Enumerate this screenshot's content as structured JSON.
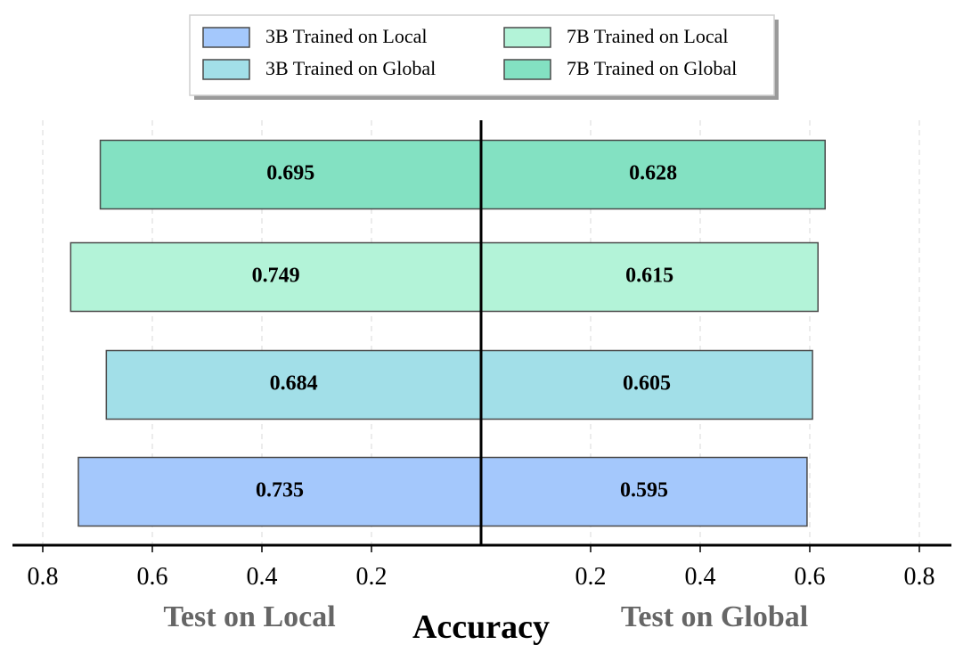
{
  "chart_data": {
    "type": "bar",
    "orientation": "horizontal-butterfly",
    "xlabel": "Accuracy",
    "panels": [
      {
        "name": "Test on Local",
        "side": "left"
      },
      {
        "name": "Test on Global",
        "side": "right"
      }
    ],
    "x_range": [
      0,
      0.8
    ],
    "x_ticks": [
      "0.2",
      "0.4",
      "0.6",
      "0.8"
    ],
    "grid": "vertical dashed",
    "legend_placement": "top-center",
    "series": [
      {
        "name": "3B Trained on Local",
        "color": "#a4c8fc",
        "left_value": 0.735,
        "right_value": 0.595,
        "left_label": "0.735",
        "right_label": "0.595"
      },
      {
        "name": "3B Trained on Global",
        "color": "#a2dfe8",
        "left_value": 0.684,
        "right_value": 0.605,
        "left_label": "0.684",
        "right_label": "0.605"
      },
      {
        "name": "7B Trained on Local",
        "color": "#b3f3d8",
        "left_value": 0.749,
        "right_value": 0.615,
        "left_label": "0.749",
        "right_label": "0.615"
      },
      {
        "name": "7B Trained on Global",
        "color": "#83e1c2",
        "left_value": 0.695,
        "right_value": 0.628,
        "left_label": "0.695",
        "right_label": "0.628"
      }
    ]
  }
}
